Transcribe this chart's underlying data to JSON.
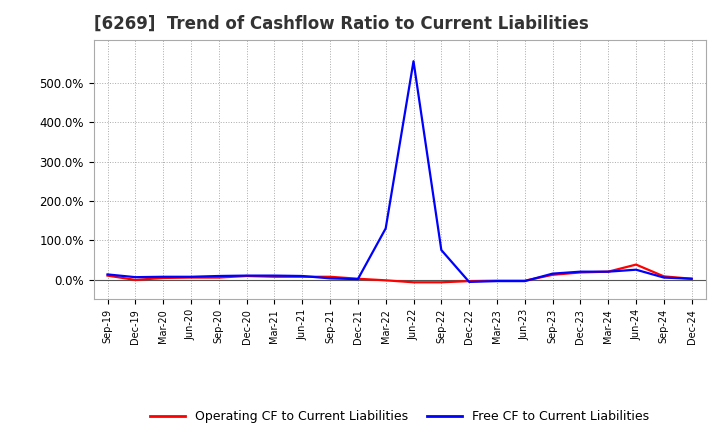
{
  "title": "[6269]  Trend of Cashflow Ratio to Current Liabilities",
  "title_fontsize": 12,
  "legend_labels": [
    "Operating CF to Current Liabilities",
    "Free CF to Current Liabilities"
  ],
  "legend_colors": [
    "#ff0000",
    "#0000ff"
  ],
  "x_labels": [
    "Sep-19",
    "Dec-19",
    "Mar-20",
    "Jun-20",
    "Sep-20",
    "Dec-20",
    "Mar-21",
    "Jun-21",
    "Sep-21",
    "Dec-21",
    "Mar-22",
    "Jun-22",
    "Sep-22",
    "Dec-22",
    "Mar-23",
    "Jun-23",
    "Sep-23",
    "Dec-23",
    "Mar-24",
    "Jun-24",
    "Sep-24",
    "Dec-24"
  ],
  "operating_cf": [
    0.1,
    -0.01,
    0.04,
    0.05,
    0.05,
    0.09,
    0.07,
    0.07,
    0.07,
    0.02,
    -0.02,
    -0.07,
    -0.07,
    -0.04,
    -0.03,
    -0.03,
    0.12,
    0.18,
    0.2,
    0.38,
    0.08,
    0.02
  ],
  "free_cf": [
    0.13,
    0.06,
    0.07,
    0.07,
    0.09,
    0.1,
    0.1,
    0.09,
    0.03,
    0.01,
    1.3,
    5.55,
    0.75,
    -0.06,
    -0.04,
    -0.04,
    0.15,
    0.2,
    0.2,
    0.25,
    0.05,
    0.02
  ],
  "ylim_min": -0.5,
  "ylim_max": 6.1,
  "ytick_positions": [
    0.0,
    1.0,
    2.0,
    3.0,
    4.0,
    5.0
  ],
  "ytick_labels": [
    "0.0%",
    "100.0%",
    "200.0%",
    "300.0%",
    "400.0%",
    "500.0%"
  ],
  "background_color": "#ffffff",
  "grid_color": "#aaaaaa",
  "line_width": 1.6,
  "title_color": "#333333"
}
